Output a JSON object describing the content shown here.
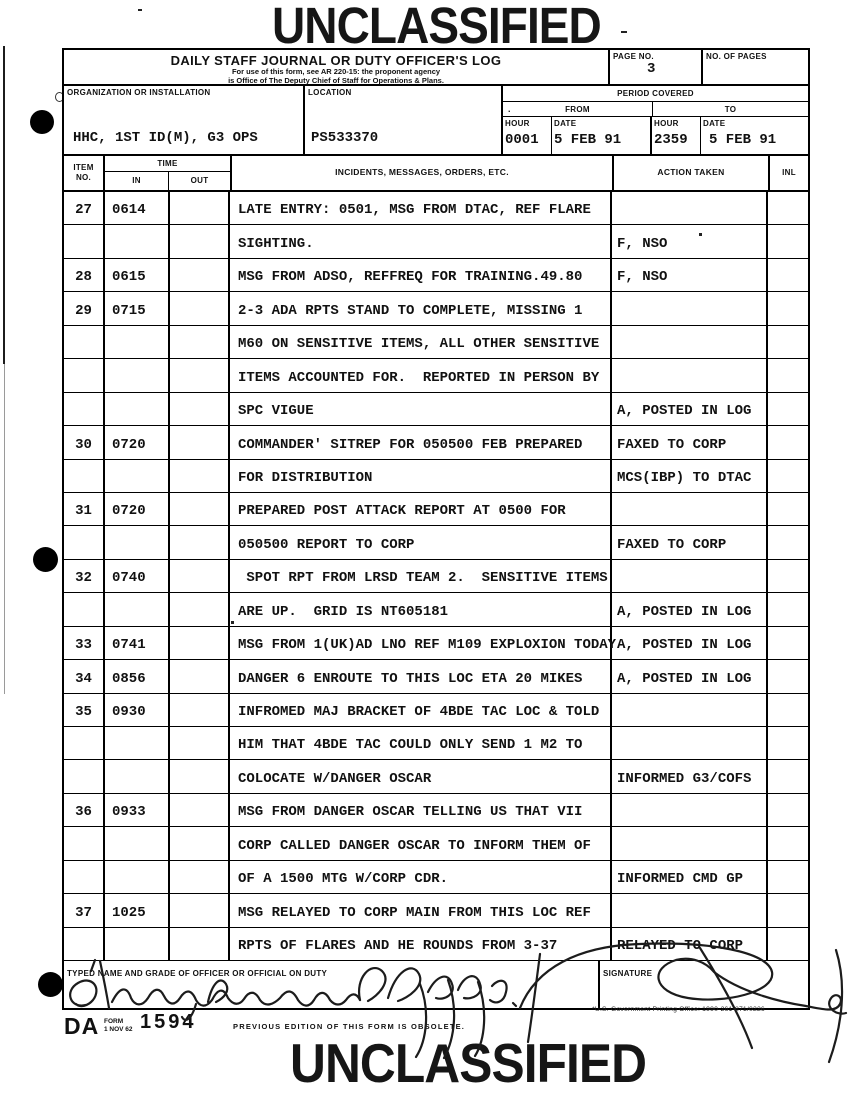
{
  "stamps": {
    "top": "UNCLASSIFIED",
    "bottom": "UNCLASSIFIED"
  },
  "header": {
    "title": "DAILY STAFF JOURNAL OR DUTY OFFICER'S LOG",
    "subtitle1": "For use of this form, see AR 220-15: the proponent agency",
    "subtitle2": "is Office of The Deputy Chief of Staff for Operations & Plans.",
    "page_no_label": "PAGE NO.",
    "page_no": "3",
    "no_of_pages_label": "NO. OF PAGES",
    "no_of_pages": "",
    "organization_label": "ORGANIZATION OR INSTALLATION",
    "organization": "HHC, 1ST ID(M), G3 OPS",
    "location_label": "LOCATION",
    "location": "PS533370",
    "period_covered_label": "PERIOD COVERED",
    "from_label": "FROM",
    "to_label": "TO",
    "hour_label": "HOUR",
    "date_label": "DATE",
    "from_hour": "0001",
    "from_date": "5 FEB 91",
    "to_hour": "2359",
    "to_date": "5 FEB 91"
  },
  "table": {
    "headers": {
      "item1": "ITEM",
      "item2": "NO.",
      "time": "TIME",
      "in": "IN",
      "out": "OUT",
      "incidents": "INCIDENTS, MESSAGES, ORDERS, ETC.",
      "action": "ACTION TAKEN",
      "inl": "INL"
    },
    "rows": [
      {
        "item": "27",
        "in": "0614",
        "out": "",
        "text": "LATE ENTRY: 0501, MSG FROM DTAC, REF FLARE",
        "action": "",
        "inl": ""
      },
      {
        "item": "",
        "in": "",
        "out": "",
        "text": "SIGHTING.",
        "action": "F, NSO",
        "inl": ""
      },
      {
        "item": "28",
        "in": "0615",
        "out": "",
        "text": "MSG FROM ADSO, REFFREQ FOR TRAINING.49.80",
        "action": "F, NSO",
        "inl": ""
      },
      {
        "item": "29",
        "in": "0715",
        "out": "",
        "text": "2-3 ADA RPTS STAND TO COMPLETE, MISSING 1",
        "action": "",
        "inl": ""
      },
      {
        "item": "",
        "in": "",
        "out": "",
        "text": "M60 ON SENSITIVE ITEMS, ALL OTHER SENSITIVE",
        "action": "",
        "inl": ""
      },
      {
        "item": "",
        "in": "",
        "out": "",
        "text": "ITEMS ACCOUNTED FOR.  REPORTED IN PERSON BY",
        "action": "",
        "inl": ""
      },
      {
        "item": "",
        "in": "",
        "out": "",
        "text": "SPC VIGUE",
        "action": "A, POSTED IN LOG",
        "inl": ""
      },
      {
        "item": "30",
        "in": "0720",
        "out": "",
        "text": "COMMANDER' SITREP FOR 050500 FEB PREPARED",
        "action": "FAXED TO CORP",
        "inl": ""
      },
      {
        "item": "",
        "in": "",
        "out": "",
        "text": "FOR DISTRIBUTION",
        "action": "MCS(IBP) TO DTAC",
        "inl": ""
      },
      {
        "item": "31",
        "in": "0720",
        "out": "",
        "text": "PREPARED POST ATTACK REPORT AT 0500 FOR",
        "action": "",
        "inl": ""
      },
      {
        "item": "",
        "in": "",
        "out": "",
        "text": "050500 REPORT TO CORP",
        "action": "FAXED TO CORP",
        "inl": ""
      },
      {
        "item": "32",
        "in": "0740",
        "out": "",
        "text": " SPOT RPT FROM LRSD TEAM 2.  SENSITIVE ITEMS",
        "action": "",
        "inl": ""
      },
      {
        "item": "",
        "in": "",
        "out": "",
        "text": "ARE UP.  GRID IS NT605181",
        "action": "A, POSTED IN LOG",
        "inl": ""
      },
      {
        "item": "33",
        "in": "0741",
        "out": "",
        "text": "MSG FROM 1(UK)AD LNO REF M109 EXPLOXION TODAY",
        "action": "A, POSTED IN LOG",
        "inl": ""
      },
      {
        "item": "34",
        "in": "0856",
        "out": "",
        "text": "DANGER 6 ENROUTE TO THIS LOC ETA 20 MIKES",
        "action": "A, POSTED IN LOG",
        "inl": ""
      },
      {
        "item": "35",
        "in": "0930",
        "out": "",
        "text": "INFROMED MAJ BRACKET OF 4BDE TAC LOC & TOLD",
        "action": "",
        "inl": ""
      },
      {
        "item": "",
        "in": "",
        "out": "",
        "text": "HIM THAT 4BDE TAC COULD ONLY SEND 1 M2 TO",
        "action": "",
        "inl": ""
      },
      {
        "item": "",
        "in": "",
        "out": "",
        "text": "COLOCATE W/DANGER OSCAR",
        "action": "INFORMED G3/COFS",
        "inl": ""
      },
      {
        "item": "36",
        "in": "0933",
        "out": "",
        "text": "MSG FROM DANGER OSCAR TELLING US THAT VII",
        "action": "",
        "inl": ""
      },
      {
        "item": "",
        "in": "",
        "out": "",
        "text": "CORP CALLED DANGER OSCAR TO INFORM THEM OF",
        "action": "",
        "inl": ""
      },
      {
        "item": "",
        "in": "",
        "out": "",
        "text": "OF A 1500 MTG W/CORP CDR.",
        "action": "INFORMED CMD GP",
        "inl": ""
      },
      {
        "item": "37",
        "in": "1025",
        "out": "",
        "text": "MSG RELAYED TO CORP MAIN FROM THIS LOC REF",
        "action": "",
        "inl": ""
      },
      {
        "item": "",
        "in": "",
        "out": "",
        "text": "RPTS OF FLARES AND HE ROUNDS FROM 3-37",
        "action": "RELAYED TO CORP",
        "inl": ""
      }
    ]
  },
  "footer": {
    "typed_name_label": "TYPED NAME AND GRADE OF OFFICER OR OFFICIAL ON DUTY",
    "signature_label": "SIGNATURE",
    "da": "DA",
    "form_label": "FORM",
    "form_date": "1 NOV 62",
    "form_number": "1594",
    "previous_edition": "PREVIOUS EDITION OF THIS FORM IS OBSOLETE.",
    "gpo_line": "*U.S. Government Printing Office: 1990-261-871/0226"
  }
}
